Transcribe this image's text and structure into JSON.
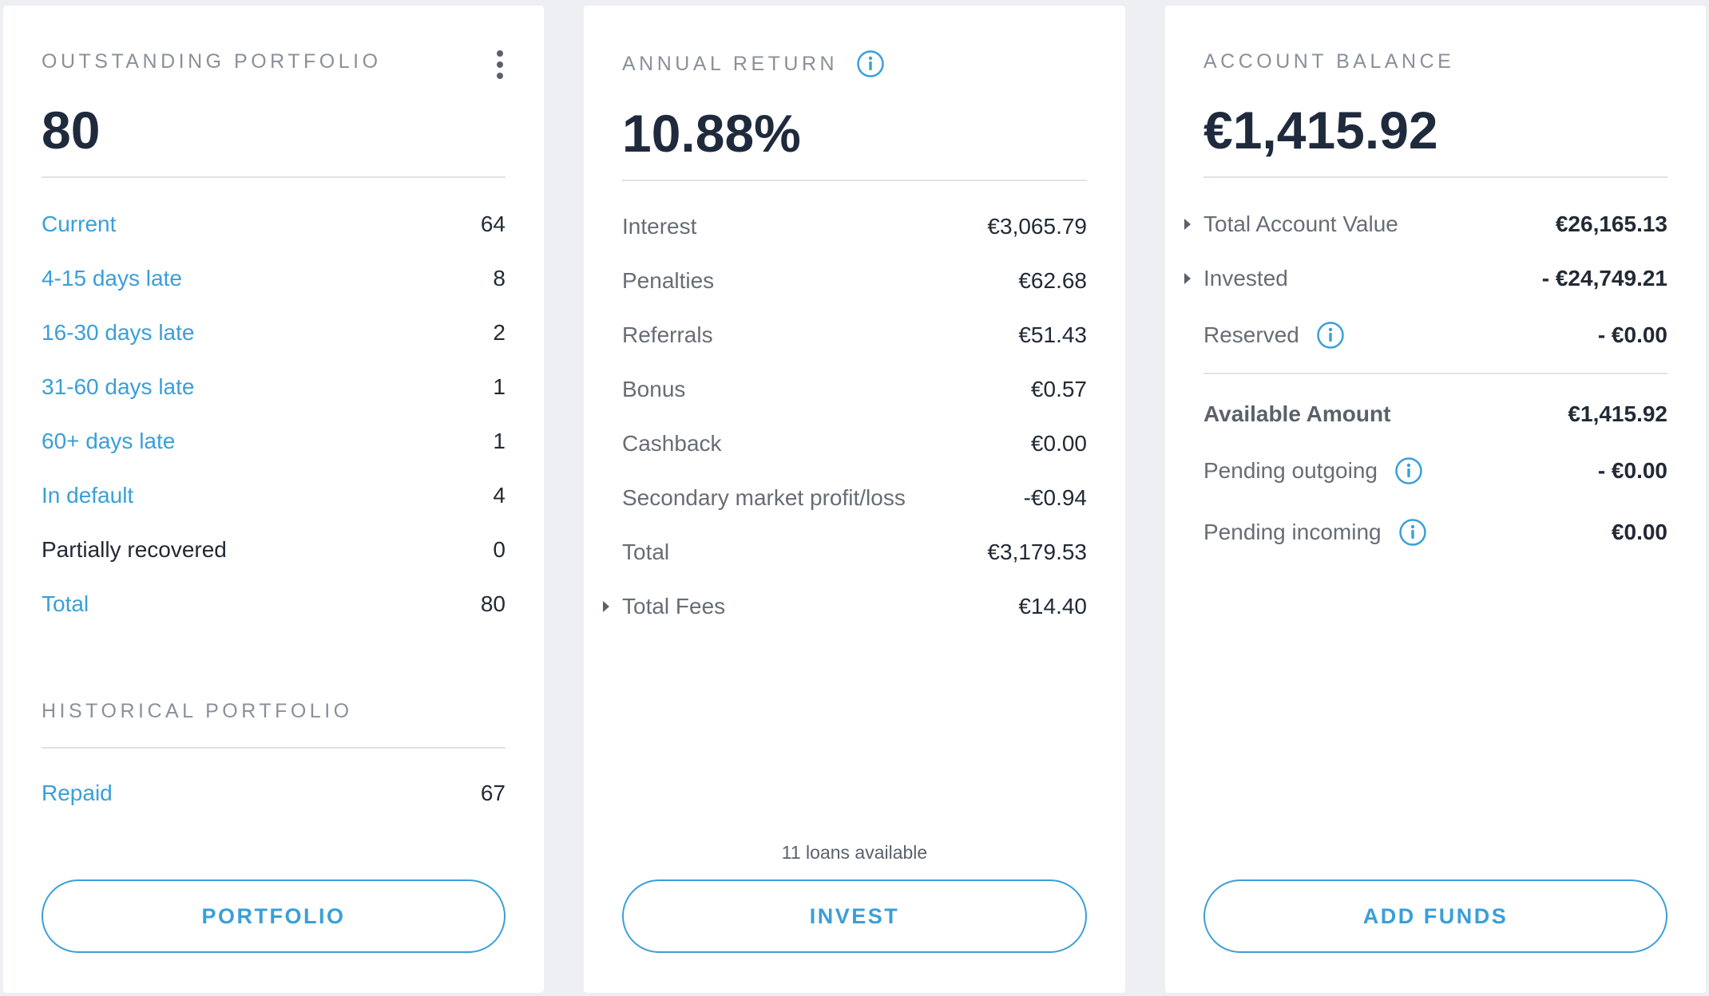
{
  "colors": {
    "accent": "#3a9fd8",
    "background": "#eeeff2",
    "card": "#ffffff",
    "text_dark": "#1f2a3d"
  },
  "outstanding": {
    "title": "OUTSTANDING PORTFOLIO",
    "menu_icon": "kebab-menu-icon",
    "value": "80",
    "rows": [
      {
        "label": "Current",
        "value": "64"
      },
      {
        "label": "4-15 days late",
        "value": "8"
      },
      {
        "label": "16-30 days late",
        "value": "2"
      },
      {
        "label": "31-60 days late",
        "value": "1"
      },
      {
        "label": "60+ days late",
        "value": "1"
      },
      {
        "label": "In default",
        "value": "4"
      },
      {
        "label": "Partially recovered",
        "value": "0"
      },
      {
        "label": "Total",
        "value": "80"
      }
    ],
    "historical_title": "HISTORICAL PORTFOLIO",
    "historical_rows": [
      {
        "label": "Repaid",
        "value": "67"
      }
    ],
    "button_label": "PORTFOLIO"
  },
  "annual_return": {
    "title": "ANNUAL RETURN",
    "title_icon": "info-icon",
    "value": "10.88%",
    "rows": [
      {
        "label": "Interest",
        "value": "€3,065.79"
      },
      {
        "label": "Penalties",
        "value": "€62.68"
      },
      {
        "label": "Referrals",
        "value": "€51.43"
      },
      {
        "label": "Bonus",
        "value": "€0.57"
      },
      {
        "label": "Cashback",
        "value": "€0.00"
      },
      {
        "label": "Secondary market profit/loss",
        "value": "-€0.94"
      },
      {
        "label": "Total",
        "value": "€3,179.53"
      },
      {
        "label": "Total Fees",
        "value": "€14.40"
      }
    ],
    "loans_note": "11 loans available",
    "button_label": "INVEST"
  },
  "account_balance": {
    "title": "ACCOUNT BALANCE",
    "value": "€1,415.92",
    "rows": [
      {
        "label": "Total Account Value",
        "value": "€26,165.13"
      },
      {
        "label": "Invested",
        "value": "- €24,749.21"
      },
      {
        "label": "Reserved",
        "value": "- €0.00"
      },
      {
        "label": "Available Amount",
        "value": "€1,415.92"
      },
      {
        "label": "Pending outgoing",
        "value": "- €0.00"
      },
      {
        "label": "Pending incoming",
        "value": "€0.00"
      }
    ],
    "button_label": "ADD FUNDS"
  }
}
